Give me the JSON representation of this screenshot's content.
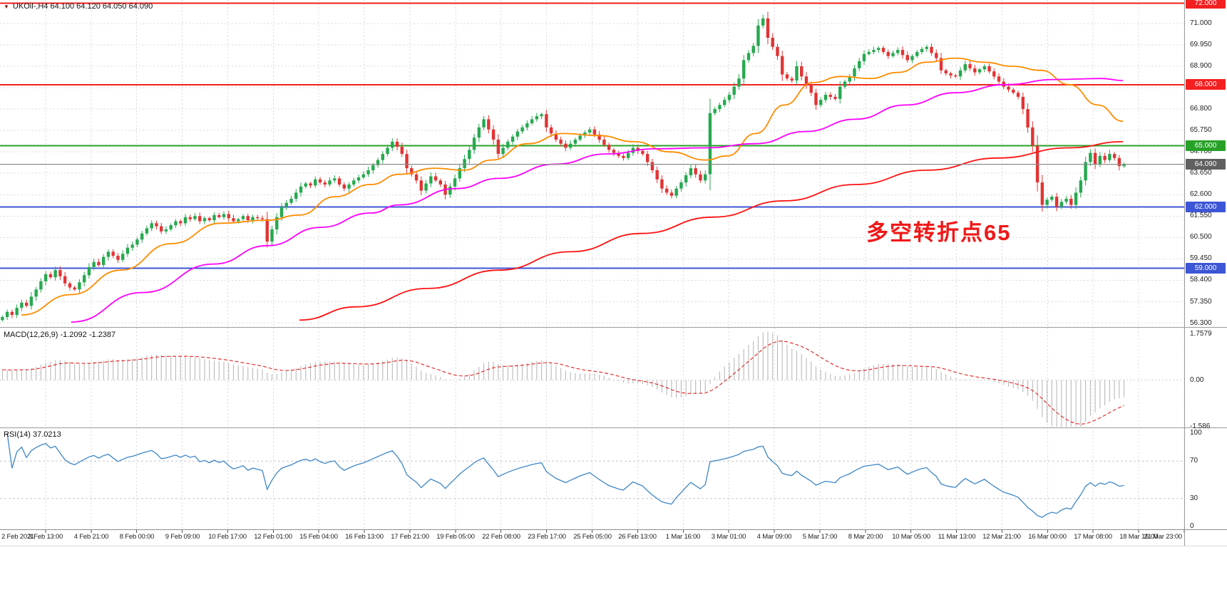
{
  "header": {
    "dropdown_arrow": "▼",
    "title": "UKOil-,H4 64.100 64.120 64.050 64.090",
    "symbol": "UKOil-",
    "timeframe": "H4",
    "open": "64.100",
    "high": "64.120",
    "low": "64.050",
    "close": "64.090"
  },
  "indicators": {
    "macd_label": "MACD(12,26,9) -1.2092 -1.2387",
    "rsi_label": "RSI(14) 37.0213"
  },
  "annotation": {
    "text": "多空转折点65",
    "color": "#f01818"
  },
  "chart_data": [
    {
      "type": "candlestick",
      "symbol": "UKOil-",
      "timeframe": "H4",
      "title": "UKOil-,H4",
      "ylim": [
        56.11,
        72.15
      ],
      "open_first": 56.45,
      "last_close": 64.09,
      "closes": [
        56.6,
        56.85,
        56.7,
        57.05,
        57.3,
        57.15,
        57.6,
        57.95,
        58.35,
        58.7,
        58.55,
        58.9,
        58.6,
        58.25,
        58.05,
        57.95,
        58.3,
        58.65,
        59.05,
        59.3,
        59.15,
        59.55,
        59.8,
        59.6,
        59.4,
        59.7,
        60.0,
        60.15,
        60.4,
        60.7,
        60.95,
        61.2,
        61.05,
        60.8,
        60.9,
        61.1,
        61.3,
        61.2,
        61.5,
        61.4,
        61.55,
        61.3,
        61.45,
        61.35,
        61.6,
        61.5,
        61.65,
        61.45,
        61.3,
        61.4,
        61.55,
        61.35,
        61.5,
        61.45,
        61.4,
        60.3,
        60.9,
        61.5,
        62.0,
        62.2,
        62.4,
        62.7,
        63.0,
        63.15,
        63.05,
        63.35,
        63.2,
        63.1,
        63.3,
        63.4,
        63.1,
        62.9,
        63.1,
        63.3,
        63.45,
        63.6,
        63.8,
        64.05,
        64.3,
        64.6,
        64.9,
        65.2,
        64.95,
        64.6,
        63.9,
        63.6,
        63.3,
        62.8,
        63.15,
        63.5,
        63.3,
        63.1,
        62.6,
        63.0,
        63.4,
        63.9,
        64.35,
        64.8,
        65.4,
        65.9,
        66.3,
        65.8,
        65.3,
        64.6,
        64.9,
        65.2,
        65.45,
        65.7,
        65.9,
        66.1,
        66.3,
        66.45,
        66.55,
        65.9,
        65.6,
        65.3,
        65.1,
        64.9,
        65.1,
        65.3,
        65.5,
        65.65,
        65.8,
        65.55,
        65.3,
        65.05,
        64.8,
        64.65,
        64.5,
        64.4,
        64.65,
        64.9,
        64.75,
        64.6,
        64.2,
        63.8,
        63.35,
        62.9,
        62.7,
        62.55,
        62.9,
        63.2,
        63.55,
        63.9,
        63.6,
        63.3,
        63.6,
        66.6,
        66.8,
        67.0,
        67.25,
        67.5,
        67.9,
        68.3,
        69.2,
        69.55,
        69.9,
        70.9,
        71.25,
        70.3,
        69.85,
        69.4,
        68.5,
        68.3,
        68.2,
        68.9,
        68.4,
        68.0,
        67.6,
        67.0,
        67.25,
        67.5,
        67.4,
        67.3,
        67.9,
        68.15,
        68.4,
        68.8,
        69.15,
        69.5,
        69.6,
        69.7,
        69.8,
        69.6,
        69.4,
        69.55,
        69.7,
        69.45,
        69.2,
        69.4,
        69.6,
        69.75,
        69.85,
        69.55,
        69.3,
        68.7,
        68.55,
        68.45,
        68.4,
        68.7,
        69.0,
        68.8,
        68.6,
        68.75,
        68.9,
        68.65,
        68.4,
        68.15,
        67.9,
        67.75,
        67.6,
        67.4,
        66.8,
        65.9,
        65.0,
        63.2,
        62.1,
        62.35,
        62.5,
        62.0,
        62.25,
        62.4,
        62.1,
        62.7,
        63.3,
        64.2,
        64.65,
        64.1,
        64.5,
        64.3,
        64.6,
        64.4,
        64.0,
        64.09
      ],
      "colors": {
        "up": "#26a94f",
        "down": "#e13434",
        "ma_fast": "#ff8c00",
        "ma_mid": "#ff00ff",
        "ma_slow": "#ff1212",
        "grid": "#d9d9d9",
        "last_price_line": "#8a8a8a"
      },
      "price_ticks": [
        {
          "v": 71.0,
          "label": "71.000"
        },
        {
          "v": 69.95,
          "label": "69.950"
        },
        {
          "v": 68.9,
          "label": "68.900"
        },
        {
          "v": 67.85,
          "label": "67.850"
        },
        {
          "v": 66.8,
          "label": "66.800"
        },
        {
          "v": 65.75,
          "label": "65.750"
        },
        {
          "v": 64.7,
          "label": "64.700"
        },
        {
          "v": 63.65,
          "label": "63.650"
        },
        {
          "v": 62.6,
          "label": "62.600"
        },
        {
          "v": 61.55,
          "label": "61.550"
        },
        {
          "v": 60.5,
          "label": "60.500"
        },
        {
          "v": 59.45,
          "label": "59.450"
        },
        {
          "v": 58.4,
          "label": "58.400"
        },
        {
          "v": 57.35,
          "label": "57.350"
        },
        {
          "v": 56.3,
          "label": "56.300"
        }
      ],
      "badges": [
        {
          "v": 72.0,
          "label": "72.000",
          "color": "#f42020"
        },
        {
          "v": 68.0,
          "label": "68.000",
          "color": "#f42020"
        },
        {
          "v": 65.0,
          "label": "65.000",
          "color": "#28a128"
        },
        {
          "v": 64.09,
          "label": "64.090",
          "color": "#606060"
        },
        {
          "v": 62.0,
          "label": "62.000",
          "color": "#3d56d6"
        },
        {
          "v": 59.0,
          "label": "59.000",
          "color": "#3d56d6"
        }
      ],
      "levels": [
        {
          "v": 72.0,
          "color": "#f42020",
          "w": 2,
          "kind": "level"
        },
        {
          "v": 68.0,
          "color": "#f42020",
          "w": 2,
          "kind": "level"
        },
        {
          "v": 65.0,
          "color": "#28a128",
          "w": 2,
          "kind": "level"
        },
        {
          "v": 62.0,
          "color": "#3d56d6",
          "w": 2,
          "kind": "level"
        },
        {
          "v": 59.0,
          "color": "#3d56d6",
          "w": 2,
          "kind": "level"
        },
        {
          "v": 64.09,
          "color": "#8a8a8a",
          "w": 1.2,
          "kind": "last_price"
        }
      ],
      "moving_averages": [
        {
          "name": "ma-fast",
          "color": "#ff8c00",
          "points": [
            [
              30,
              56.7
            ],
            [
              100,
              57.7
            ],
            [
              170,
              58.9
            ],
            [
              240,
              60.2
            ],
            [
              310,
              61.2
            ],
            [
              375,
              61.35
            ],
            [
              420,
              61.6
            ],
            [
              470,
              62.5
            ],
            [
              520,
              63.1
            ],
            [
              560,
              63.6
            ],
            [
              610,
              63.9
            ],
            [
              650,
              63.8
            ],
            [
              690,
              64.3
            ],
            [
              740,
              65.1
            ],
            [
              790,
              65.6
            ],
            [
              840,
              65.5
            ],
            [
              890,
              65.2
            ],
            [
              940,
              64.7
            ],
            [
              990,
              64.3
            ],
            [
              1020,
              64.5
            ],
            [
              1060,
              65.6
            ],
            [
              1100,
              67.0
            ],
            [
              1140,
              68.1
            ],
            [
              1180,
              68.4
            ],
            [
              1220,
              68.3
            ],
            [
              1260,
              68.6
            ],
            [
              1300,
              69.1
            ],
            [
              1340,
              69.3
            ],
            [
              1380,
              69.1
            ],
            [
              1420,
              68.9
            ],
            [
              1460,
              68.7
            ],
            [
              1500,
              68.0
            ],
            [
              1540,
              67.0
            ],
            [
              1575,
              66.2
            ]
          ]
        },
        {
          "name": "ma-mid",
          "color": "#ff00ff",
          "points": [
            [
              100,
              56.35
            ],
            [
              200,
              57.8
            ],
            [
              300,
              59.2
            ],
            [
              375,
              60.1
            ],
            [
              450,
              61.0
            ],
            [
              520,
              61.7
            ],
            [
              560,
              62.1
            ],
            [
              640,
              62.9
            ],
            [
              700,
              63.4
            ],
            [
              780,
              64.1
            ],
            [
              850,
              64.6
            ],
            [
              920,
              64.85
            ],
            [
              990,
              64.9
            ],
            [
              1060,
              65.1
            ],
            [
              1130,
              65.7
            ],
            [
              1200,
              66.3
            ],
            [
              1270,
              67.0
            ],
            [
              1340,
              67.6
            ],
            [
              1410,
              68.0
            ],
            [
              1480,
              68.25
            ],
            [
              1545,
              68.3
            ],
            [
              1575,
              68.2
            ]
          ]
        },
        {
          "name": "ma-slow",
          "color": "#ff1212",
          "points": [
            [
              420,
              56.45
            ],
            [
              500,
              57.1
            ],
            [
              600,
              58.0
            ],
            [
              700,
              58.9
            ],
            [
              800,
              59.8
            ],
            [
              900,
              60.7
            ],
            [
              1000,
              61.5
            ],
            [
              1100,
              62.3
            ],
            [
              1200,
              63.1
            ],
            [
              1300,
              63.8
            ],
            [
              1400,
              64.4
            ],
            [
              1500,
              64.9
            ],
            [
              1575,
              65.2
            ]
          ]
        }
      ],
      "x_labels": [
        "2 Feb 2021",
        "3 Feb 13:00",
        "4 Feb 21:00",
        "8 Feb 00:00",
        "9 Feb 09:00",
        "10 Feb 17:00",
        "12 Feb 01:00",
        "15 Feb 04:00",
        "16 Feb 13:00",
        "17 Feb 21:00",
        "19 Feb 05:00",
        "22 Feb 08:00",
        "23 Feb 17:00",
        "25 Feb 05:00",
        "26 Feb 13:00",
        "1 Mar 16:00",
        "3 Mar 01:00",
        "4 Mar 09:00",
        "5 Mar 17:00",
        "8 Mar 20:00",
        "10 Mar 05:00",
        "11 Mar 13:00",
        "12 Mar 21:00",
        "16 Mar 00:00",
        "17 Mar 08:00",
        "18 Mar 16:00",
        "21 Mar 23:00"
      ]
    },
    {
      "type": "macd",
      "name": "MACD",
      "params": [
        12,
        26,
        9
      ],
      "last_macd": -1.2092,
      "last_signal": -1.2387,
      "ylim": [
        -1.586,
        1.7579
      ],
      "ticks": [
        {
          "v": 1.7579,
          "label": "1.7579"
        },
        {
          "v": 0,
          "label": "0.00"
        },
        {
          "v": -1.586,
          "label": "-1.586"
        }
      ],
      "colors": {
        "histogram": "#b9b9b9",
        "signal": "#e02020"
      }
    },
    {
      "type": "rsi",
      "name": "RSI",
      "period": 14,
      "last": 37.0213,
      "levels": [
        70,
        30
      ],
      "ylim": [
        0,
        100
      ],
      "ticks": [
        {
          "v": 100,
          "label": "100"
        },
        {
          "v": 70,
          "label": "70"
        },
        {
          "v": 30,
          "label": "30"
        },
        {
          "v": 0,
          "label": "0"
        }
      ],
      "colors": {
        "line": "#3e86c6",
        "level": "#c6c6d2"
      }
    }
  ]
}
